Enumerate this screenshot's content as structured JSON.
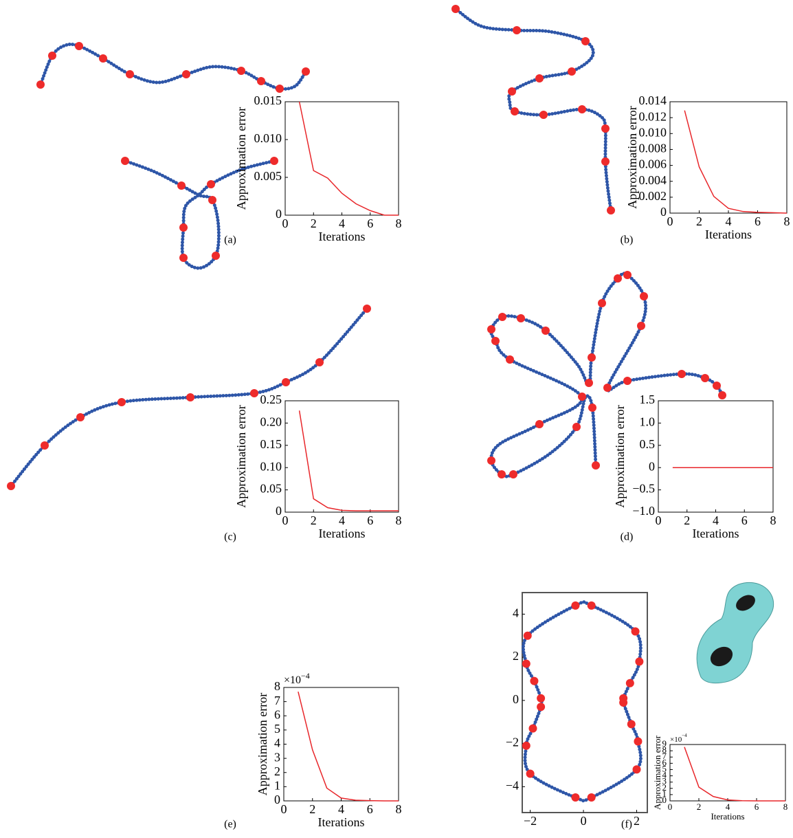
{
  "chart_data": [
    {
      "type": "line",
      "caption": "(a)",
      "xlabel": "Iterations",
      "ylabel": "Approximation error",
      "x": [
        1,
        2,
        3,
        4,
        5,
        6,
        7,
        8
      ],
      "values": [
        0.015,
        0.0059,
        0.0049,
        0.0029,
        0.0015,
        0.0006,
        0.0,
        0.0
      ],
      "color": "#e8262a",
      "xlim": [
        0,
        8
      ],
      "xticks": [
        0,
        2,
        4,
        6,
        8
      ],
      "ylim": [
        0,
        0.015
      ],
      "yticks": [
        0,
        0.005,
        {
          "value": 0.01,
          "label": "0.010"
        },
        0.015
      ]
    },
    {
      "type": "line",
      "caption": "(b)",
      "xlabel": "Iterations",
      "ylabel": "Approximation error",
      "x": [
        1,
        2,
        3,
        4,
        5,
        6,
        7,
        8
      ],
      "values": [
        0.0129,
        0.0058,
        0.0021,
        0.0006,
        0.0002,
        0.0001,
        5e-05,
        0.0
      ],
      "color": "#e8262a",
      "xlim": [
        0,
        8
      ],
      "xticks": [
        0,
        2,
        4,
        6,
        8
      ],
      "ylim": [
        0,
        0.014
      ],
      "yticks": [
        0,
        0.002,
        0.004,
        0.006,
        0.008,
        {
          "value": 0.01,
          "label": "0.010"
        },
        0.012,
        0.014
      ]
    },
    {
      "type": "line",
      "caption": "(c)",
      "xlabel": "Iterations",
      "ylabel": "Approximation error",
      "x": [
        1,
        2,
        3,
        4,
        5,
        6,
        7,
        8
      ],
      "values": [
        0.228,
        0.03,
        0.01,
        0.004,
        0.003,
        0.003,
        0.003,
        0.003
      ],
      "color": "#e8262a",
      "xlim": [
        0,
        8
      ],
      "xticks": [
        0,
        2,
        4,
        6,
        8
      ],
      "ylim": [
        0,
        0.25
      ],
      "yticks": [
        0,
        0.05,
        {
          "value": 0.1,
          "label": "0.10"
        },
        0.15,
        {
          "value": 0.2,
          "label": "0.20"
        },
        0.25
      ]
    },
    {
      "type": "line",
      "caption": "(d)",
      "xlabel": "Iterations",
      "ylabel": "Approximation error",
      "x": [
        1,
        2,
        3,
        4,
        5,
        6,
        7,
        8
      ],
      "values": [
        0,
        0,
        0,
        0,
        0,
        0,
        0,
        0
      ],
      "color": "#e8262a",
      "xlim": [
        0,
        8
      ],
      "xticks": [
        0,
        2,
        4,
        6,
        8
      ],
      "ylim": [
        -1,
        1.5
      ],
      "yticks": [
        {
          "value": -1,
          "label": "−1.0"
        },
        {
          "value": -0.5,
          "label": "−0.5"
        },
        0,
        0.5,
        {
          "value": 1,
          "label": "1.0"
        },
        1.5
      ]
    },
    {
      "type": "line",
      "caption": "(e)",
      "xlabel": "Iterations",
      "ylabel": "Approximation error",
      "multiplier_base": "×10",
      "multiplier_exponent": "−4",
      "x": [
        1,
        2,
        3,
        4,
        5,
        6,
        7,
        8
      ],
      "values": [
        0.00077,
        0.00036,
        9e-05,
        2e-05,
        5e-06,
        2e-06,
        0.0,
        0.0
      ],
      "color": "#e8262a",
      "xlim": [
        0,
        8
      ],
      "xticks": [
        0,
        2,
        4,
        6,
        8
      ],
      "ylim": [
        0,
        0.0008
      ],
      "yticks": [
        0,
        {
          "value": 0.0001,
          "label": "1"
        },
        {
          "value": 0.0002,
          "label": "2"
        },
        {
          "value": 0.0003,
          "label": "3"
        },
        {
          "value": 0.0004,
          "label": "4"
        },
        {
          "value": 0.0005,
          "label": "5"
        },
        {
          "value": 0.0006,
          "label": "6"
        },
        {
          "value": 0.0007,
          "label": "7"
        },
        {
          "value": 0.0008,
          "label": "8"
        }
      ]
    },
    {
      "type": "line",
      "caption": "(f)",
      "xlabel": "Iterations",
      "ylabel": "Approximation error",
      "multiplier_base": "×10",
      "multiplier_exponent": "−4",
      "x": [
        1,
        2,
        3,
        4,
        5,
        6,
        7,
        8
      ],
      "values": [
        0.00086,
        0.00022,
        7e-05,
        1.5e-05,
        3e-06,
        0.0,
        0.0,
        0.0
      ],
      "color": "#e8262a",
      "xlim": [
        0,
        8
      ],
      "xticks": [
        0,
        2,
        4,
        6,
        8
      ],
      "ylim": [
        0,
        0.0009
      ],
      "yticks": [
        0,
        {
          "value": 0.0001,
          "label": "1"
        },
        {
          "value": 0.0002,
          "label": "2"
        },
        {
          "value": 0.0003,
          "label": "3"
        },
        {
          "value": 0.0004,
          "label": "4"
        },
        {
          "value": 0.0005,
          "label": "5"
        },
        {
          "value": 0.0006,
          "label": "6"
        },
        {
          "value": 0.0007,
          "label": "7"
        },
        {
          "value": 0.0008,
          "label": "8"
        },
        {
          "value": 0.0009,
          "label": "9"
        }
      ]
    },
    {
      "type": "scatter",
      "color": "#ee2b2b",
      "curve_color": "#24489a",
      "x": [
        -0.3,
        0.3,
        1.95,
        2.1,
        1.75,
        1.5,
        1.5,
        1.8,
        2.05,
        2.0,
        0.3,
        -0.3,
        -2.0,
        -2.15,
        -1.9,
        -1.6,
        -1.6,
        -1.85,
        -2.15,
        -2.1
      ],
      "y": [
        4.4,
        4.4,
        3.2,
        1.8,
        0.8,
        0.1,
        -0.1,
        -1.1,
        -1.9,
        -3.2,
        -4.5,
        -4.5,
        -3.4,
        -2.1,
        -1.3,
        -0.3,
        0.1,
        0.9,
        1.7,
        3.0
      ],
      "xlim": [
        -2.3,
        2.4
      ],
      "xticks": [
        {
          "value": -2,
          "label": "−2"
        },
        0,
        2
      ],
      "ylim": [
        -5.2,
        5.0
      ],
      "yticks": [
        {
          "value": -4,
          "label": "−4"
        },
        {
          "value": -2,
          "label": "−2"
        },
        0,
        2,
        4
      ]
    }
  ]
}
